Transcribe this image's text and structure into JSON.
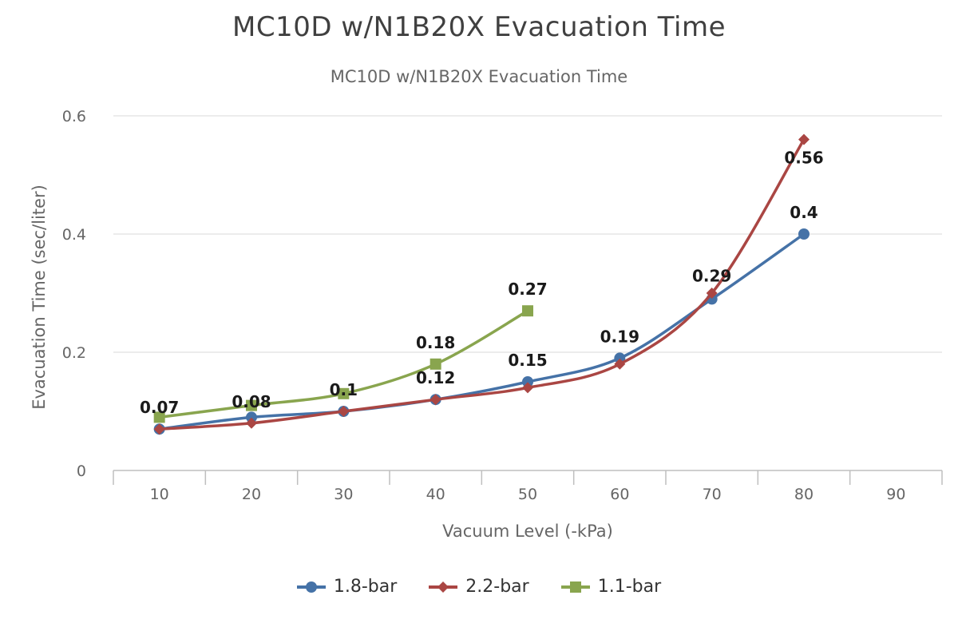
{
  "title": "MC10D w/N1B20X Evacuation Time",
  "subtitle": "MC10D w/N1B20X Evacuation Time",
  "chart_data": {
    "type": "line",
    "title": "MC10D w/N1B20X Evacuation Time",
    "subtitle": "MC10D w/N1B20X Evacuation Time",
    "xlabel": "Vacuum Level (-kPa)",
    "ylabel": "Evacuation Time (sec/liter)",
    "categories": [
      "10",
      "20",
      "30",
      "40",
      "50",
      "60",
      "70",
      "80",
      "90"
    ],
    "ylim": [
      0,
      0.6
    ],
    "yticks": [
      0,
      0.2,
      0.4,
      0.6
    ],
    "ytick_labels": [
      "0",
      "0.2",
      "0.4",
      "0.6"
    ],
    "grid": "horizontal",
    "legend_position": "bottom",
    "smooth": true,
    "series": [
      {
        "name": "1.8-bar",
        "color": "#4572A7",
        "marker": "circle",
        "values": [
          0.07,
          0.09,
          0.1,
          0.12,
          0.15,
          0.19,
          0.29,
          0.4,
          null
        ],
        "labels": [
          "0.07",
          "",
          "",
          "0.12",
          "0.15",
          "0.19",
          "0.29",
          "0.4",
          ""
        ]
      },
      {
        "name": "2.2-bar",
        "color": "#AA4643",
        "marker": "diamond",
        "values": [
          0.07,
          0.08,
          0.1,
          0.12,
          0.14,
          0.18,
          0.3,
          0.56,
          null
        ],
        "labels": [
          "",
          "0.08",
          "0.1",
          "",
          "",
          "",
          "",
          "0.56",
          ""
        ]
      },
      {
        "name": "1.1-bar",
        "color": "#89A54E",
        "marker": "square",
        "values": [
          0.09,
          0.11,
          0.13,
          0.18,
          0.27,
          null,
          null,
          null,
          null
        ],
        "labels": [
          "",
          "",
          "",
          "0.18",
          "0.27",
          "",
          "",
          "",
          ""
        ]
      }
    ]
  }
}
